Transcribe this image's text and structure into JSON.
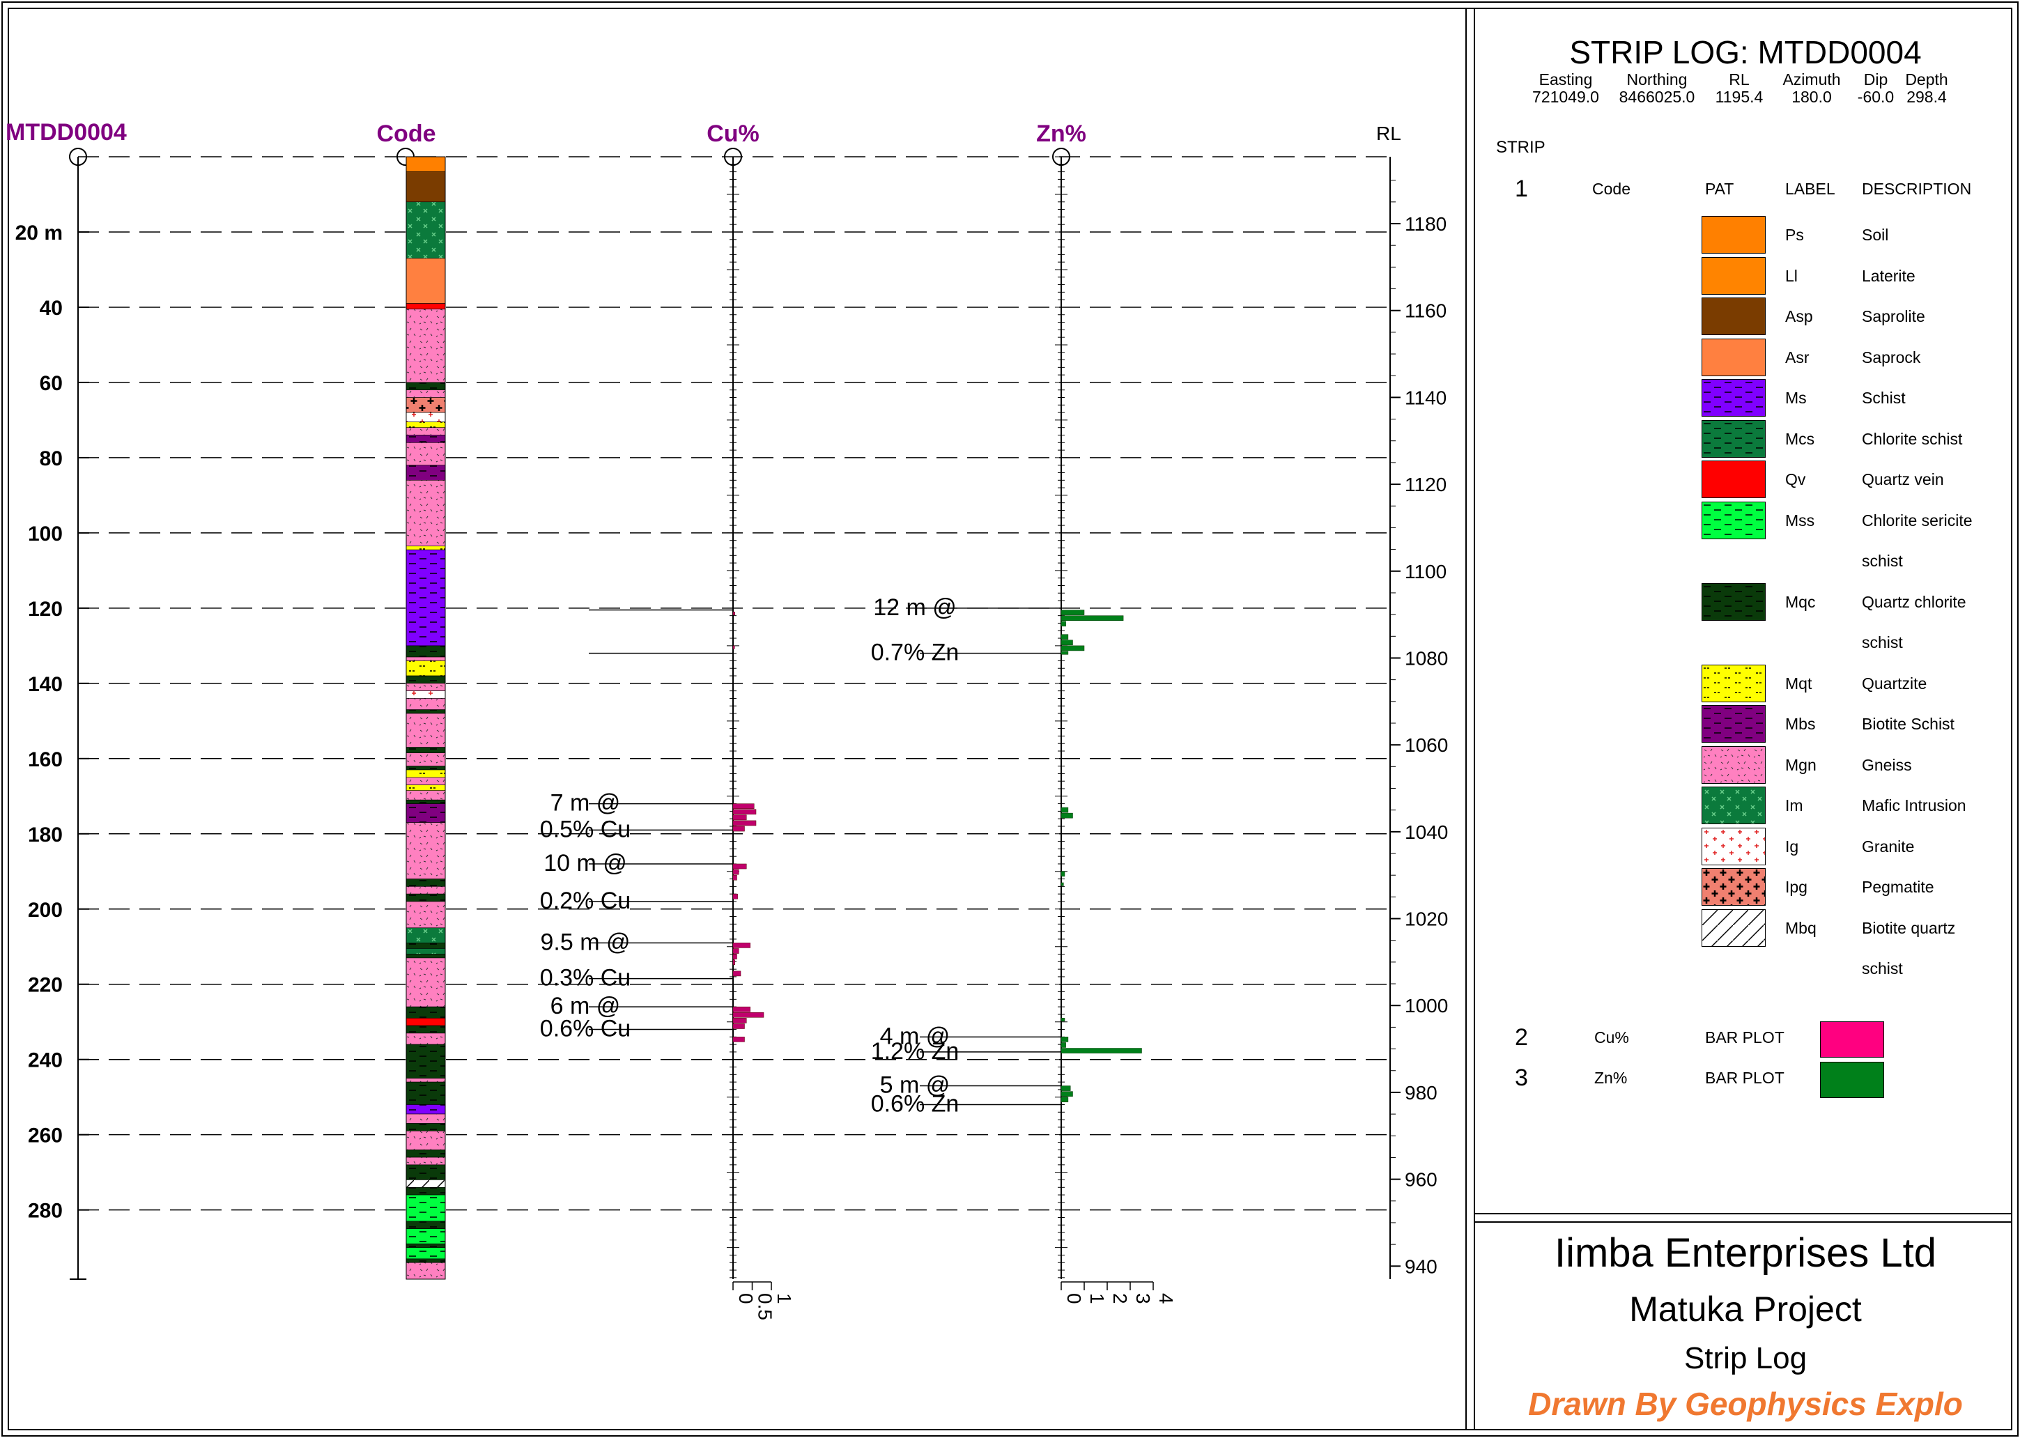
{
  "chart_data": {
    "type": "strip_log",
    "hole_id": "MTDD0004",
    "title": "STRIP LOG: MTDD0004",
    "collar": {
      "headers": [
        "Easting",
        "Northing",
        "RL",
        "Azimuth",
        "Dip",
        "Depth"
      ],
      "values": [
        "721049.0",
        "8466025.0",
        "1195.4",
        "180.0",
        "-60.0",
        "298.4"
      ]
    },
    "tracks": {
      "depth": "MTDD0004",
      "code": "Code",
      "cu": "Cu%",
      "zn": "Zn%",
      "rl": "RL"
    },
    "depth_range": [
      0,
      298.4
    ],
    "depth_ticks": [
      {
        "value": 20,
        "label": "20 m"
      },
      {
        "value": 40,
        "label": "40"
      },
      {
        "value": 60,
        "label": "60"
      },
      {
        "value": 80,
        "label": "80"
      },
      {
        "value": 100,
        "label": "100"
      },
      {
        "value": 120,
        "label": "120"
      },
      {
        "value": 140,
        "label": "140"
      },
      {
        "value": 160,
        "label": "160"
      },
      {
        "value": 180,
        "label": "180"
      },
      {
        "value": 200,
        "label": "200"
      },
      {
        "value": 220,
        "label": "220"
      },
      {
        "value": 240,
        "label": "240"
      },
      {
        "value": 260,
        "label": "260"
      },
      {
        "value": 280,
        "label": "280"
      }
    ],
    "rl_ticks": [
      1180,
      1160,
      1140,
      1120,
      1100,
      1080,
      1060,
      1040,
      1020,
      1000,
      980,
      960,
      940
    ],
    "rl_range": [
      1195.4,
      937.0
    ],
    "lithology": [
      {
        "from": 0,
        "to": 4,
        "code": "Ps"
      },
      {
        "from": 4,
        "to": 12,
        "code": "Asp"
      },
      {
        "from": 12,
        "to": 27,
        "code": "Im"
      },
      {
        "from": 27,
        "to": 39,
        "code": "Asr"
      },
      {
        "from": 39,
        "to": 40.5,
        "code": "Qv"
      },
      {
        "from": 40.5,
        "to": 60,
        "code": "Mgn"
      },
      {
        "from": 60,
        "to": 62,
        "code": "Mqc"
      },
      {
        "from": 62,
        "to": 64,
        "code": "Mgn"
      },
      {
        "from": 64,
        "to": 68,
        "code": "Ipg"
      },
      {
        "from": 68,
        "to": 70.5,
        "code": "Ig"
      },
      {
        "from": 70.5,
        "to": 72,
        "code": "Mqt"
      },
      {
        "from": 72,
        "to": 74,
        "code": "Mgn"
      },
      {
        "from": 74,
        "to": 76,
        "code": "Mbs"
      },
      {
        "from": 76,
        "to": 82,
        "code": "Mgn"
      },
      {
        "from": 82,
        "to": 86,
        "code": "Mbs"
      },
      {
        "from": 86,
        "to": 103.5,
        "code": "Mgn"
      },
      {
        "from": 103.5,
        "to": 104.5,
        "code": "Mqt"
      },
      {
        "from": 104.5,
        "to": 130,
        "code": "Ms"
      },
      {
        "from": 130,
        "to": 133,
        "code": "Mqc"
      },
      {
        "from": 133,
        "to": 134,
        "code": "Mgn"
      },
      {
        "from": 134,
        "to": 138,
        "code": "Mqt"
      },
      {
        "from": 138,
        "to": 140,
        "code": "Mqc"
      },
      {
        "from": 140,
        "to": 142,
        "code": "Mgn"
      },
      {
        "from": 142,
        "to": 144,
        "code": "Ig"
      },
      {
        "from": 144,
        "to": 147,
        "code": "Mgn"
      },
      {
        "from": 147,
        "to": 148,
        "code": "Mqc"
      },
      {
        "from": 148,
        "to": 157,
        "code": "Mgn"
      },
      {
        "from": 157,
        "to": 158.5,
        "code": "Mqc"
      },
      {
        "from": 158.5,
        "to": 162,
        "code": "Mgn"
      },
      {
        "from": 162,
        "to": 163,
        "code": "Mqc"
      },
      {
        "from": 163,
        "to": 165,
        "code": "Mqt"
      },
      {
        "from": 165,
        "to": 167,
        "code": "Mgn"
      },
      {
        "from": 167,
        "to": 168.5,
        "code": "Mqt"
      },
      {
        "from": 168.5,
        "to": 171,
        "code": "Mgn"
      },
      {
        "from": 171,
        "to": 172,
        "code": "Mqc"
      },
      {
        "from": 172,
        "to": 177,
        "code": "Mbs"
      },
      {
        "from": 177,
        "to": 192,
        "code": "Mgn"
      },
      {
        "from": 192,
        "to": 194,
        "code": "Mqc"
      },
      {
        "from": 194,
        "to": 196,
        "code": "Mgn"
      },
      {
        "from": 196,
        "to": 198,
        "code": "Mqc"
      },
      {
        "from": 198,
        "to": 205,
        "code": "Mgn"
      },
      {
        "from": 205,
        "to": 209,
        "code": "Im"
      },
      {
        "from": 209,
        "to": 210.5,
        "code": "Mqc"
      },
      {
        "from": 210.5,
        "to": 212,
        "code": "Im"
      },
      {
        "from": 212,
        "to": 213,
        "code": "Mqc"
      },
      {
        "from": 213,
        "to": 226,
        "code": "Mgn"
      },
      {
        "from": 226,
        "to": 229,
        "code": "Mqc"
      },
      {
        "from": 229,
        "to": 231,
        "code": "Qv"
      },
      {
        "from": 231,
        "to": 233,
        "code": "Mqc"
      },
      {
        "from": 233,
        "to": 236,
        "code": "Mgn"
      },
      {
        "from": 236,
        "to": 245,
        "code": "Mqc"
      },
      {
        "from": 245,
        "to": 246,
        "code": "Mgn"
      },
      {
        "from": 246,
        "to": 252,
        "code": "Mqc"
      },
      {
        "from": 252,
        "to": 254.5,
        "code": "Ms"
      },
      {
        "from": 254.5,
        "to": 257,
        "code": "Mgn"
      },
      {
        "from": 257,
        "to": 259,
        "code": "Mqc"
      },
      {
        "from": 259,
        "to": 264,
        "code": "Mgn"
      },
      {
        "from": 264,
        "to": 266,
        "code": "Mqc"
      },
      {
        "from": 266,
        "to": 268,
        "code": "Mgn"
      },
      {
        "from": 268,
        "to": 272,
        "code": "Mqc"
      },
      {
        "from": 272,
        "to": 274,
        "code": "Mbq"
      },
      {
        "from": 274,
        "to": 276,
        "code": "Mqc"
      },
      {
        "from": 276,
        "to": 283,
        "code": "Mss"
      },
      {
        "from": 283,
        "to": 285,
        "code": "Mqc"
      },
      {
        "from": 285,
        "to": 289,
        "code": "Mss"
      },
      {
        "from": 289,
        "to": 290,
        "code": "Mqc"
      },
      {
        "from": 290,
        "to": 293,
        "code": "Mss"
      },
      {
        "from": 293,
        "to": 294,
        "code": "Mqc"
      },
      {
        "from": 294,
        "to": 298.4,
        "code": "Mgn"
      }
    ],
    "cu": {
      "axis_ticks": [
        0,
        0.5,
        1
      ],
      "axis_tick_labels": [
        "0",
        "0.5",
        "1"
      ],
      "axis_max": 1.0,
      "color": "#c0006c",
      "samples": [
        {
          "from": 121,
          "to": 122,
          "value": 0.05
        },
        {
          "from": 130,
          "to": 131,
          "value": 0.04
        },
        {
          "from": 172,
          "to": 173.5,
          "value": 0.55
        },
        {
          "from": 173.5,
          "to": 175,
          "value": 0.6
        },
        {
          "from": 175,
          "to": 176.5,
          "value": 0.35
        },
        {
          "from": 176.5,
          "to": 178,
          "value": 0.6
        },
        {
          "from": 178,
          "to": 179.5,
          "value": 0.3
        },
        {
          "from": 188,
          "to": 189.5,
          "value": 0.35
        },
        {
          "from": 189.5,
          "to": 191,
          "value": 0.15
        },
        {
          "from": 191,
          "to": 192.5,
          "value": 0.1
        },
        {
          "from": 196,
          "to": 197.5,
          "value": 0.12
        },
        {
          "from": 209,
          "to": 210.5,
          "value": 0.45
        },
        {
          "from": 210.5,
          "to": 212,
          "value": 0.15
        },
        {
          "from": 212,
          "to": 213.5,
          "value": 0.1
        },
        {
          "from": 213.5,
          "to": 215,
          "value": 0.05
        },
        {
          "from": 216.5,
          "to": 218,
          "value": 0.2
        },
        {
          "from": 226,
          "to": 227.5,
          "value": 0.45
        },
        {
          "from": 227.5,
          "to": 229,
          "value": 0.8
        },
        {
          "from": 229,
          "to": 230.5,
          "value": 0.35
        },
        {
          "from": 230.5,
          "to": 232,
          "value": 0.3
        },
        {
          "from": 234,
          "to": 235.5,
          "value": 0.3
        }
      ],
      "intervals": [
        {
          "from": 120.5,
          "to": 132,
          "line1": "",
          "line2": ""
        },
        {
          "from": 172,
          "to": 179,
          "line1": "7 m @",
          "line2": "0.5% Cu"
        },
        {
          "from": 188,
          "to": 198,
          "line1": "10 m @",
          "line2": "0.2% Cu"
        },
        {
          "from": 209,
          "to": 218.5,
          "line1": "9.5 m @",
          "line2": "0.3% Cu"
        },
        {
          "from": 226,
          "to": 232,
          "line1": "6 m @",
          "line2": "0.6% Cu"
        }
      ]
    },
    "zn": {
      "axis_ticks": [
        0,
        1,
        2,
        3,
        4
      ],
      "axis_tick_labels": [
        "0",
        "1",
        "2",
        "3",
        "4"
      ],
      "axis_max": 4.0,
      "color": "#00801a",
      "samples": [
        {
          "from": 120.5,
          "to": 122,
          "value": 1.0
        },
        {
          "from": 122,
          "to": 123.5,
          "value": 2.7
        },
        {
          "from": 123.5,
          "to": 125,
          "value": 0.2
        },
        {
          "from": 127,
          "to": 128.5,
          "value": 0.3
        },
        {
          "from": 128.5,
          "to": 130,
          "value": 0.5
        },
        {
          "from": 130,
          "to": 131.5,
          "value": 1.0
        },
        {
          "from": 131.5,
          "to": 132.5,
          "value": 0.3
        },
        {
          "from": 173,
          "to": 174.5,
          "value": 0.3
        },
        {
          "from": 174.5,
          "to": 176,
          "value": 0.5
        },
        {
          "from": 190,
          "to": 191.5,
          "value": 0.15
        },
        {
          "from": 193,
          "to": 194,
          "value": 0.1
        },
        {
          "from": 229,
          "to": 230,
          "value": 0.15
        },
        {
          "from": 234,
          "to": 235.5,
          "value": 0.3
        },
        {
          "from": 235.5,
          "to": 237,
          "value": 0.2
        },
        {
          "from": 237,
          "to": 238.5,
          "value": 3.5
        },
        {
          "from": 247,
          "to": 248.5,
          "value": 0.4
        },
        {
          "from": 248.5,
          "to": 250,
          "value": 0.5
        },
        {
          "from": 250,
          "to": 251.5,
          "value": 0.3
        }
      ],
      "intervals": [
        {
          "from": 120,
          "to": 132,
          "line1": "12 m @",
          "line2": "0.7% Zn"
        },
        {
          "from": 234,
          "to": 238,
          "line1": "4 m @",
          "line2": "1.2% Zn"
        },
        {
          "from": 247,
          "to": 252,
          "line1": "5 m @",
          "line2": "0.6% Zn"
        }
      ]
    }
  },
  "legend": {
    "strip_label": "STRIP",
    "strip1_number": "1",
    "strip1_name": "Code",
    "col_pat": "PAT",
    "col_label": "LABEL",
    "col_desc": "DESCRIPTION",
    "items": [
      {
        "code": "Ps",
        "desc": "Soil",
        "desc2": "",
        "color": "#ff8000"
      },
      {
        "code": "Ll",
        "desc": "Laterite",
        "desc2": "",
        "color": "#ff8400"
      },
      {
        "code": "Asp",
        "desc": "Saprolite",
        "desc2": "",
        "color": "#7a3c00"
      },
      {
        "code": "Asr",
        "desc": "Saprock",
        "desc2": "",
        "color": "#ff8040"
      },
      {
        "code": "Ms",
        "desc": "Schist",
        "desc2": "",
        "color": "#8000ff"
      },
      {
        "code": "Mcs",
        "desc": "Chlorite schist",
        "desc2": "",
        "color": "#0b7a3c"
      },
      {
        "code": "Qv",
        "desc": "Quartz vein",
        "desc2": "",
        "color": "#ff0000"
      },
      {
        "code": "Mss",
        "desc": "Chlorite sericite",
        "desc2": "schist",
        "color": "#00ff40"
      },
      {
        "code": "Mqc",
        "desc": "Quartz chlorite",
        "desc2": "schist",
        "color": "#0a3a0a"
      },
      {
        "code": "Mqt",
        "desc": "Quartzite",
        "desc2": "",
        "color": "#ffff00"
      },
      {
        "code": "Mbs",
        "desc": "Biotite Schist",
        "desc2": "",
        "color": "#800080"
      },
      {
        "code": "Mgn",
        "desc": "Gneiss",
        "desc2": "",
        "color": "#ff80c0"
      },
      {
        "code": "Im",
        "desc": "Mafic Intrusion",
        "desc2": "",
        "color": "#0b7a3c"
      },
      {
        "code": "Ig",
        "desc": "Granite",
        "desc2": "",
        "color": "#ffffff"
      },
      {
        "code": "Ipg",
        "desc": "Pegmatite",
        "desc2": "",
        "color": "#f08070"
      },
      {
        "code": "Mbq",
        "desc": "Biotite quartz",
        "desc2": "schist",
        "color": "#ffffff"
      }
    ],
    "bar_strips": [
      {
        "number": "2",
        "name": "Cu%",
        "type": "BAR PLOT",
        "color": "#ff0080"
      },
      {
        "number": "3",
        "name": "Zn%",
        "type": "BAR PLOT",
        "color": "#00801a"
      }
    ]
  },
  "title_block": {
    "company": "Iimba Enterprises Ltd",
    "project": "Matuka Project",
    "doc": "Strip Log",
    "drawn_by": "Drawn By Geophysics Explo"
  },
  "colors": {
    "track_title": "#800080",
    "drawn_by": "#f07830"
  }
}
